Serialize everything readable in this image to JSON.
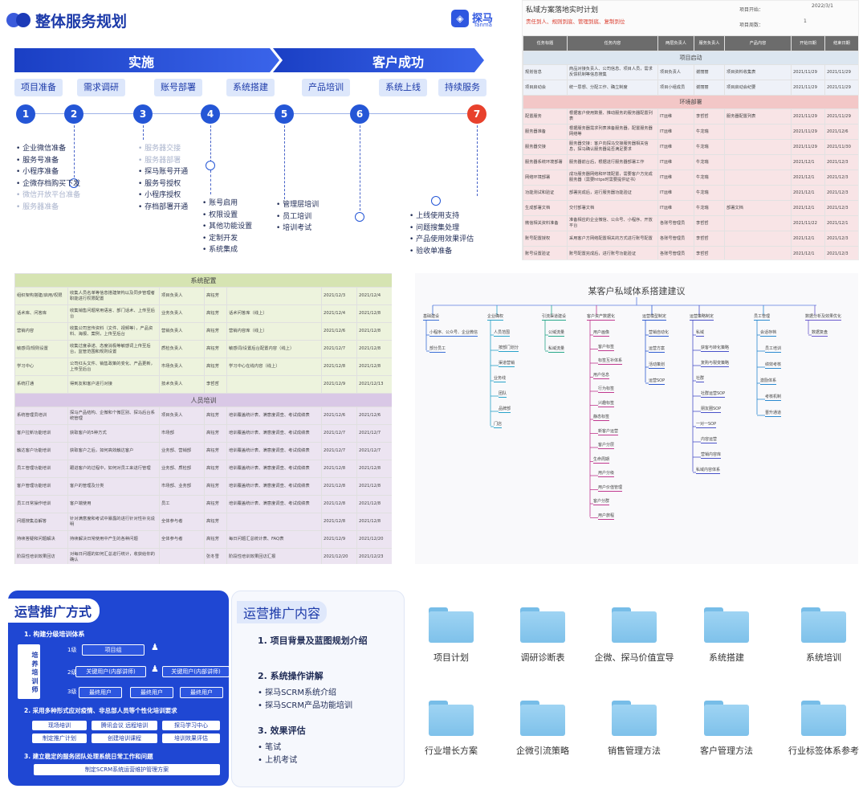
{
  "roadmap": {
    "title": "整体服务规划",
    "brand_name": "探马",
    "brand_sub": "Tanma",
    "phases": [
      "实施",
      "客户成功"
    ],
    "steps": [
      "项目准备",
      "需求调研",
      "账号部署",
      "系统搭建",
      "产品培训",
      "系统上线",
      "持续服务"
    ],
    "numbers": [
      "1",
      "2",
      "3",
      "4",
      "5",
      "6",
      "7"
    ],
    "list1": [
      "企业微信准备",
      "服务号准备",
      "小程序准备",
      "企微存档购买下发",
      "微信开放平台准备",
      "服务器准备"
    ],
    "list2": [
      "服务器交接",
      "服务器部署",
      "探马账号开通",
      "服务号授权",
      "小程序授权",
      "存档部署开通"
    ],
    "list3": [
      "账号启用",
      "权限设置",
      "其他功能设置",
      "定制开发",
      "系统集成"
    ],
    "list4": [
      "管理层培训",
      "员工培训",
      "培训考试"
    ],
    "list5": [
      "上线使用支持",
      "问题搜集处理",
      "产品使用效果评估",
      "验收单准备"
    ]
  },
  "sheet_top": {
    "title": "私域方案落地实时计划",
    "subtitle": "责任到人、规则到底、管理到底、复制到位",
    "meta_start_label": "项目开始：",
    "meta_start_value": "2022/3/1",
    "meta_week_label": "项目周数：",
    "meta_week_value": "1",
    "headers": [
      "任务标题",
      "任务内容",
      "两层负责人",
      "服务负责人",
      "产品内容",
      "开始日期",
      "结束日期"
    ],
    "sec1": "项目启动",
    "rows1": [
      [
        "规划信息",
        "商品对接负责人、公司信息、项目人员，需求反馈机制等信息搜集",
        "项目负责人",
        "谢丽丽",
        "项目资料收集表",
        "2021/11/29",
        "2021/11/29"
      ],
      [
        "项目启动会",
        "统一思想、分配工作、确立制度",
        "项目小组成员",
        "谢丽丽",
        "项目启动会纪要",
        "2021/11/29",
        "2021/11/29"
      ]
    ],
    "sec2": "环境部署",
    "rows2": [
      [
        "配置服务",
        "根据客户使用数量、推动服务的服务器配置列表",
        "IT运维",
        "李哲哲",
        "服务器配置列表",
        "2021/11/29",
        "2021/11/29"
      ],
      [
        "服务器准备",
        "根据服务器需求列表准备服务器，配置服务器网络等",
        "IT运维",
        "牛龙瑞",
        "",
        "2021/11/29",
        "2021/12/6"
      ],
      [
        "服务器交接",
        "服务器交接：客户向探马交接服务器相关信息，探马确认服务器是否满足要求",
        "IT运维",
        "牛龙瑞",
        "",
        "2021/11/29",
        "2021/11/30"
      ],
      [
        "服务器系统环境部署",
        "服务器前台后，根据进行服务器部署工作",
        "IT运维",
        "牛龙瑞",
        "",
        "2021/12/1",
        "2021/12/3"
      ],
      [
        "网络环境部署",
        "成功服务器网络和环境配置，需要客户方完成服务器（需要https时需要提供证书）",
        "IT运维",
        "牛龙瑞",
        "",
        "2021/12/1",
        "2021/12/3"
      ],
      [
        "功能测试和验证",
        "部署完成后，进行服务器功能验证",
        "IT运维",
        "牛龙瑞",
        "",
        "2021/12/1",
        "2021/12/3"
      ],
      [
        "生成部署文档",
        "交付部署文档",
        "IT运维",
        "牛龙瑞",
        "部署文档",
        "2021/12/1",
        "2021/12/3"
      ],
      [
        "微信相关资料准备",
        "准备相应的企业微信、公众号、小程序、开放平台",
        "各账号管理员",
        "李哲哲",
        "",
        "2021/11/22",
        "2021/12/1"
      ],
      [
        "账号配置授权",
        "采用客户方网络配置相关的方式进行账号配置",
        "各账号管理员",
        "李哲哲",
        "",
        "2021/12/1",
        "2021/12/3"
      ],
      [
        "账号设置验证",
        "账号配置完成后，进行账号功能验证",
        "各账号管理员",
        "李哲哲",
        "",
        "2021/12/1",
        "2021/12/3"
      ]
    ]
  },
  "sheet_mid": {
    "sec1": "系统配置",
    "rows1": [
      [
        "组织架构搭建/启用/权限",
        "收集人员名单等信息搭建架构以及同步管理者职能进行权限配置",
        "项目负责人",
        "高钰芳",
        "",
        "2021/12/3",
        "2021/12/4"
      ],
      [
        "话术库、问答库",
        "收集销售问题常用语言、部门话术、上传至后台",
        "业务负责人",
        "高钰芳",
        "话术问答库（线上）",
        "2021/12/4",
        "2021/12/8"
      ],
      [
        "营销内容",
        "收集公司宣传资料（文件、视频等），产品资料、海报、案例，上传至后台",
        "营销负责人",
        "高钰芳",
        "营销内容库（线上）",
        "2021/12/6",
        "2021/12/8"
      ],
      [
        "敏感词/规则设置",
        "收集过度承诺、态度消极等敏感词上传至后台，监管范围和规则设置",
        "质检负责人",
        "高钰芳",
        "敏感词/设置后台配置内容（线上）",
        "2021/12/7",
        "2021/12/8"
      ],
      [
        "学习中心",
        "公司红头文件、销售政策的变化、产品更新，上传至后台",
        "市场负责人",
        "高钰芳",
        "学习中心在线内容（线上）",
        "2021/12/8",
        "2021/12/8"
      ],
      [
        "系统打通",
        "得到友和客户进行对接",
        "技术负责人",
        "李哲哲",
        "",
        "2021/12/9",
        "2021/12/13"
      ]
    ],
    "sec2": "人员培训",
    "rows2": [
      [
        "系统管理员培训",
        "探马产品结构、企微和个微区别、探马后台系统管理",
        "项目负责人",
        "高钰芳",
        "培训覆盖统计表、满意度调查、考试成绩表",
        "2021/12/6",
        "2021/12/6"
      ],
      [
        "客户拉新功能培训",
        "获取客户的5种方式",
        "市场部",
        "高钰芳",
        "培训覆盖统计表、满意度调查、考试成绩表",
        "2021/12/7",
        "2021/12/7"
      ],
      [
        "触达客户功能培训",
        "获取客户之后，如何高效触达客户",
        "业务部、营销部",
        "高钰芳",
        "培训覆盖统计表、满意度调查、考试成绩表",
        "2021/12/7",
        "2021/12/7"
      ],
      [
        "员工管理功能培训",
        "跟进客户的过程中，如何对员工来进行管理",
        "业务部、质检部",
        "高钰芳",
        "培训覆盖统计表、满意度调查、考试成绩表",
        "2021/12/8",
        "2021/12/8"
      ],
      [
        "客户管理功能培训",
        "客户的管理及分类",
        "市场部、业务部",
        "高钰芳",
        "培训覆盖统计表、满意度调查、考试成绩表",
        "2021/12/8",
        "2021/12/8"
      ],
      [
        "员工日常操作培训",
        "客户端使用",
        "员工",
        "高钰芳",
        "培训覆盖统计表、满意度调查、考试成绩表",
        "2021/12/8",
        "2021/12/8"
      ],
      [
        "问题搜集总解答",
        "针对满意度和考试中暴露的进行针对性补充说明",
        "全体参与者",
        "高钰芳",
        "",
        "2021/12/8",
        "2021/12/8"
      ],
      [
        "持续答疑和问题解决",
        "持续解决日常使用中产生的各种问题",
        "全体参与者",
        "高钰芳",
        "每日问题汇总统计表、FAQ表",
        "2021/12/9",
        "2021/12/20"
      ],
      [
        "阶段性培训效果回访",
        "对每日问题的如何汇总进行统计，收获给你的确认",
        "",
        "张冬雪",
        "阶段性培训效果回访汇报",
        "2021/12/20",
        "2021/12/23"
      ]
    ]
  },
  "mindmap": {
    "title": "某客户私域体系搭建建议",
    "branches": [
      {
        "name": "基础建设",
        "items": [
          "小程序、公众号、企业微信",
          "部分员工"
        ]
      },
      {
        "name": "企业确权",
        "items": [
          "人员范围",
          "按部门划分",
          "渠道营销",
          "业务线",
          "团队",
          "品牌部",
          "门店"
        ]
      },
      {
        "name": "引流渠道建设",
        "items": [
          "公域流量",
          "私域流量"
        ]
      },
      {
        "name": "客户资产数据化",
        "items": [
          "用户画像",
          "客户标签",
          "标签互补体系",
          "用户信息",
          "行为标签",
          "兴趣标签",
          "静态标签",
          "新客户运营",
          "客户分层",
          "生命周期",
          "用户分级",
          "用户价值管理",
          "客户分群",
          "用户旅程"
        ]
      },
      {
        "name": "运营模型制定",
        "items": [
          "营销自动化",
          "运营方案",
          "活动策划",
          "运营SOP"
        ]
      },
      {
        "name": "运营策略制定",
        "items": [
          "私域",
          "获客与转化策略",
          "复购与裂变策略",
          "社群",
          "社群运营SOP",
          "朋友圈SOP",
          "一对一SOP",
          "内容运营",
          "营销内容库",
          "私域内容体系"
        ]
      },
      {
        "name": "员工管理",
        "items": [
          "会话存档",
          "员工培训",
          "绩效考核",
          "激励体系",
          "考核机制",
          "晋升通道"
        ]
      },
      {
        "name": "数据分析及效果优化",
        "items": [
          "数据复盘"
        ]
      }
    ]
  },
  "card_training": {
    "title": "运营推广方式",
    "h1": "1. 构建分级培训体系",
    "trainer": "培 养 培 训 师",
    "levels": [
      "1级",
      "2级",
      "3级"
    ],
    "lv1_box": "项目组",
    "lv2_boxes": [
      "关键用户(内部讲师)",
      "关键用户(内部讲师)"
    ],
    "lv3_boxes": [
      "最终用户",
      "最终用户",
      "最终用户"
    ],
    "h2": "2. 采用多种形式应对疫情、非总部人员等个性化培训要求",
    "grid": [
      "现场培训",
      "腾讯会议 远程培训",
      "探马学习中心",
      "制定推广计划",
      "创建培训课程",
      "培训效果评估"
    ],
    "h3": "3. 建立稳定的服务团队处理系统日常工作和问题",
    "bottom": "制定SCRM系统运营维护管理方案"
  },
  "card_content": {
    "title": "运营推广内容",
    "s1": "1. 项目背景及蓝图规划介绍",
    "s2": "2. 系统操作讲解",
    "s2_items": [
      "探马SCRM系统介绍",
      "探马SCRM产品功能培训"
    ],
    "s3": "3. 效果评估",
    "s3_items": [
      "笔试",
      "上机考试"
    ]
  },
  "folders": [
    "项目计划",
    "调研诊断表",
    "企微、探马价值宣导",
    "系统搭建",
    "系统培训",
    "行业增长方案",
    "企微引流策略",
    "销售管理方法",
    "客户管理方法",
    "行业标签体系参考"
  ]
}
